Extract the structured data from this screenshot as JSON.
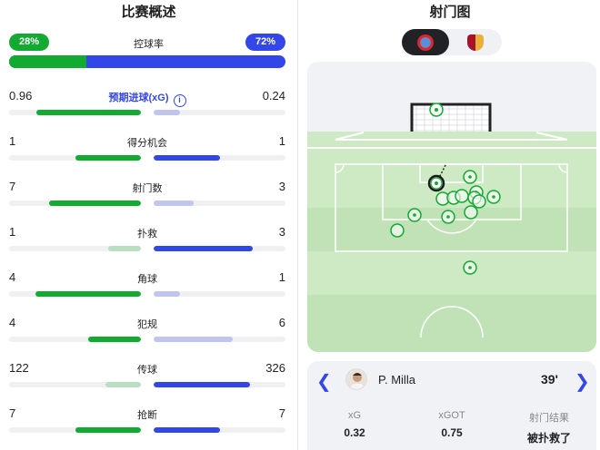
{
  "summary": {
    "title": "比赛概述",
    "possession": {
      "label": "控球率",
      "home": "28%",
      "away": "72%",
      "home_fraction": 0.28
    },
    "stats": [
      {
        "label": "预期进球(xG)",
        "home": "0.96",
        "away": "0.24",
        "home_fill": 0.79,
        "away_fill": 0.2,
        "home_strong": true,
        "away_strong": false,
        "info": true
      },
      {
        "label": "得分机会",
        "home": "1",
        "away": "1",
        "home_fill": 0.5,
        "away_fill": 0.5,
        "home_strong": true,
        "away_strong": true
      },
      {
        "label": "射门数",
        "home": "7",
        "away": "3",
        "home_fill": 0.7,
        "away_fill": 0.3,
        "home_strong": true,
        "away_strong": false
      },
      {
        "label": "扑救",
        "home": "1",
        "away": "3",
        "home_fill": 0.25,
        "away_fill": 0.75,
        "home_strong": false,
        "away_strong": true
      },
      {
        "label": "角球",
        "home": "4",
        "away": "1",
        "home_fill": 0.8,
        "away_fill": 0.2,
        "home_strong": true,
        "away_strong": false
      },
      {
        "label": "犯规",
        "home": "4",
        "away": "6",
        "home_fill": 0.4,
        "away_fill": 0.6,
        "home_strong": true,
        "away_strong": false
      },
      {
        "label": "传球",
        "home": "122",
        "away": "326",
        "home_fill": 0.27,
        "away_fill": 0.73,
        "home_strong": false,
        "away_strong": true
      },
      {
        "label": "抢断",
        "home": "7",
        "away": "7",
        "home_fill": 0.5,
        "away_fill": 0.5,
        "home_strong": true,
        "away_strong": true
      }
    ]
  },
  "shotmap": {
    "title": "射门图",
    "teams": [
      {
        "name": "espanyol-crest",
        "selected": true
      },
      {
        "name": "barcelona-crest",
        "selected": false
      }
    ],
    "selected_shot": {
      "player": "P. Milla",
      "minute": "39'",
      "xg_label": "xG",
      "xg": "0.32",
      "xgot_label": "xGOT",
      "xgot": "0.75",
      "result_label": "射门结果",
      "result": "被扑救了"
    }
  },
  "colors": {
    "home": "#13aa32",
    "home_light": "#b9dfc2",
    "away": "#3346e8",
    "away_light": "#c0c5ee",
    "pitch": "#cdeac4",
    "pitch_dark": "#c1e2b6"
  }
}
